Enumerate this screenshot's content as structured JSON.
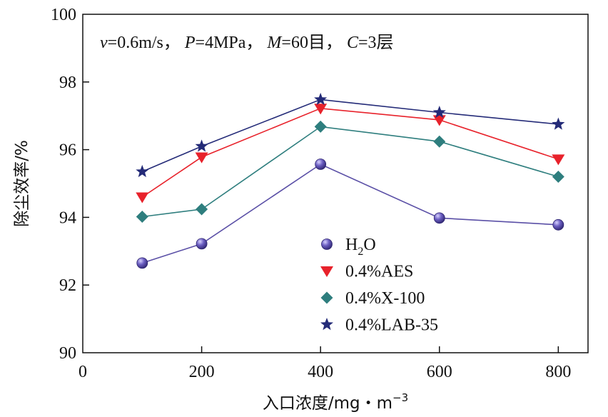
{
  "chart_data": {
    "type": "line",
    "title": "",
    "annotation": {
      "v_sym": "v",
      "v_val": "=0.6m/s，",
      "p_sym": "P",
      "p_val": "=4MPa，",
      "m_sym": "M",
      "m_val": "=60目，",
      "c_sym": "C",
      "c_val": "=3层"
    },
    "xlabel": "入口浓度/mg・m",
    "xlabel_sup": "−3",
    "ylabel": "除尘效率/%",
    "xlim": [
      0,
      850
    ],
    "ylim": [
      90,
      100
    ],
    "x_ticks": [
      0,
      200,
      400,
      600,
      800
    ],
    "y_ticks": [
      90,
      92,
      94,
      96,
      98,
      100
    ],
    "x": [
      100,
      200,
      400,
      600,
      800
    ],
    "series": [
      {
        "name": "H2O",
        "label_main": "H",
        "label_sub": "2",
        "label_tail": "O",
        "marker": "circle",
        "color": "#4B3F9E",
        "line_color": "#5A4FA6",
        "values": [
          92.65,
          93.22,
          95.57,
          93.98,
          93.78
        ]
      },
      {
        "name": "0.4%AES",
        "marker": "triangle-down",
        "color": "#E8222B",
        "line_color": "#E8222B",
        "values": [
          94.6,
          95.78,
          97.22,
          96.88,
          95.72
        ]
      },
      {
        "name": "0.4%X-100",
        "marker": "diamond",
        "color": "#2E7E7E",
        "line_color": "#2E7E7E",
        "values": [
          94.02,
          94.24,
          96.68,
          96.24,
          95.2
        ]
      },
      {
        "name": "0.4%LAB-35",
        "marker": "star",
        "color": "#242B78",
        "line_color": "#242B78",
        "values": [
          95.35,
          96.1,
          97.48,
          97.1,
          96.75
        ]
      }
    ],
    "legend_position": "bottom-right-center"
  }
}
